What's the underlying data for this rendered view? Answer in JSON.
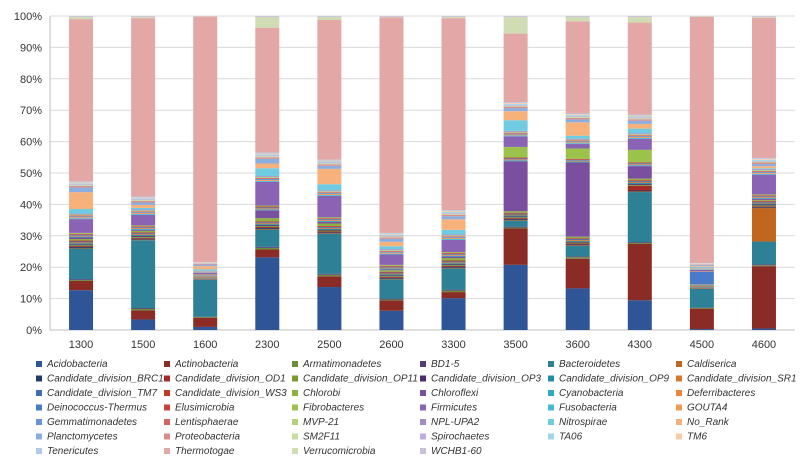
{
  "chart_data": {
    "type": "bar",
    "stacked": true,
    "normalized": true,
    "categories": [
      "1300",
      "1500",
      "1600",
      "2300",
      "2500",
      "2600",
      "3300",
      "3500",
      "3600",
      "4300",
      "4500",
      "4600"
    ],
    "y_ticks": [
      "0%",
      "10%",
      "20%",
      "30%",
      "40%",
      "50%",
      "60%",
      "70%",
      "80%",
      "90%",
      "100%"
    ],
    "ylim": [
      0,
      100
    ],
    "grid": true,
    "legend_position": "bottom",
    "series": [
      {
        "name": "Acidobacteria",
        "color": "#2f5597",
        "values": [
          13,
          3.5,
          1,
          23,
          14,
          6.5,
          10.5,
          21.5,
          14,
          9.5,
          0.3,
          0.5
        ]
      },
      {
        "name": "Actinobacteria",
        "color": "#8b2b25",
        "values": [
          3,
          3,
          3,
          2.5,
          3.5,
          3.5,
          2,
          12,
          10,
          18,
          6.5,
          20.5
        ]
      },
      {
        "name": "Armatimonadetes",
        "color": "#6b8e3a",
        "values": [
          0.3,
          0.5,
          0.2,
          0.5,
          0.5,
          0.3,
          0.5,
          0.3,
          0.5,
          0.3,
          0.2,
          0.3
        ]
      },
      {
        "name": "BD1-5",
        "color": "#553c7b",
        "values": [
          0.3,
          0.3,
          0.1,
          0.3,
          0.3,
          0.3,
          0.3,
          0.3,
          0.3,
          0.3,
          0.1,
          0.3
        ]
      },
      {
        "name": "Bacteroidetes",
        "color": "#2d8096",
        "values": [
          10,
          22.5,
          12,
          5.5,
          13,
          6.5,
          7,
          2,
          3.5,
          16,
          6,
          7.5
        ]
      },
      {
        "name": "Caldiserica",
        "color": "#c0661e",
        "values": [
          0.2,
          0.2,
          0.1,
          0.2,
          0.2,
          0.2,
          0.2,
          0.2,
          0.2,
          0.2,
          0.1,
          11
        ]
      },
      {
        "name": "Candidate_division_BRC1",
        "color": "#1f3a6b",
        "values": [
          0.3,
          0.3,
          0.1,
          0.3,
          0.3,
          0.3,
          0.3,
          0.3,
          0.3,
          0.3,
          0.1,
          0.3
        ]
      },
      {
        "name": "Candidate_division_OD1",
        "color": "#a52a2a",
        "values": [
          0.3,
          0.3,
          0.1,
          0.3,
          0.3,
          0.3,
          0.3,
          0.3,
          0.3,
          1.5,
          0.1,
          0.3
        ]
      },
      {
        "name": "Candidate_division_OP11",
        "color": "#7a9a2e",
        "values": [
          0.3,
          0.3,
          0.1,
          0.3,
          0.3,
          0.3,
          0.3,
          0.3,
          0.3,
          0.3,
          0.1,
          0.3
        ]
      },
      {
        "name": "Candidate_division_OP3",
        "color": "#4b2c70",
        "values": [
          0.3,
          0.3,
          0.1,
          0.3,
          0.3,
          0.3,
          0.3,
          0.3,
          0.3,
          0.3,
          0.1,
          0.3
        ]
      },
      {
        "name": "Candidate_division_OP9",
        "color": "#1f8fa8",
        "values": [
          0.3,
          0.3,
          0.1,
          0.3,
          0.3,
          0.3,
          0.3,
          0.3,
          0.3,
          0.3,
          0.1,
          0.3
        ]
      },
      {
        "name": "Candidate_division_SR1",
        "color": "#d9772b",
        "values": [
          0.3,
          0.3,
          0.1,
          0.3,
          0.3,
          0.3,
          0.3,
          0.3,
          0.3,
          0.3,
          0.1,
          0.3
        ]
      },
      {
        "name": "Candidate_division_TM7",
        "color": "#3f6cb3",
        "values": [
          0.3,
          0.3,
          0.1,
          0.3,
          0.3,
          0.3,
          0.3,
          0.3,
          0.3,
          0.3,
          0.1,
          0.3
        ]
      },
      {
        "name": "Candidate_division_WS3",
        "color": "#c0392b",
        "values": [
          0.3,
          0.3,
          0.1,
          0.3,
          0.3,
          0.3,
          0.3,
          0.3,
          0.3,
          0.3,
          0.1,
          0.3
        ]
      },
      {
        "name": "Chlorobi",
        "color": "#8db141",
        "values": [
          0.5,
          0.5,
          0.2,
          1,
          0.8,
          0.5,
          0.8,
          0.5,
          0.5,
          0.5,
          0.2,
          0.3
        ]
      },
      {
        "name": "Chloroflexi",
        "color": "#7b4fa0",
        "values": [
          0.5,
          0.3,
          0.2,
          2.5,
          0.5,
          0.3,
          0.5,
          16.5,
          25,
          4,
          0.1,
          0.3
        ]
      },
      {
        "name": "Cyanobacteria",
        "color": "#2eaac8",
        "values": [
          0.3,
          0.3,
          0.1,
          0.3,
          0.3,
          0.3,
          0.3,
          0.3,
          0.3,
          0.3,
          0.1,
          0.3
        ]
      },
      {
        "name": "Deferribacteres",
        "color": "#f0843a",
        "values": [
          0.3,
          0.3,
          0.1,
          0.3,
          0.3,
          0.3,
          0.3,
          0.3,
          0.3,
          0.3,
          0.1,
          0.3
        ]
      },
      {
        "name": "Deinococcus-Thermus",
        "color": "#4a7bc8",
        "values": [
          0.3,
          0.3,
          0.1,
          0.3,
          0.3,
          0.3,
          0.3,
          0.3,
          0.3,
          0.3,
          4,
          0.3
        ]
      },
      {
        "name": "Elusimicrobia",
        "color": "#c9413c",
        "values": [
          0.3,
          0.3,
          0.1,
          0.3,
          0.3,
          0.3,
          0.3,
          0.3,
          0.3,
          0.3,
          0.1,
          0.3
        ]
      },
      {
        "name": "Fibrobacteres",
        "color": "#9bc24a",
        "values": [
          0.3,
          0.3,
          0.1,
          0.3,
          0.3,
          0.3,
          0.3,
          3.5,
          3.5,
          4,
          0.1,
          0.3
        ]
      },
      {
        "name": "Firmicutes",
        "color": "#8a63b5",
        "values": [
          4.5,
          3.5,
          0.5,
          7.5,
          7,
          3.5,
          4,
          3.5,
          1.5,
          3.5,
          0.4,
          6.5
        ]
      },
      {
        "name": "Fusobacteria",
        "color": "#43bcd8",
        "values": [
          0.3,
          0.3,
          0.1,
          0.3,
          0.3,
          0.3,
          0.3,
          0.3,
          0.3,
          0.3,
          0.1,
          0.3
        ]
      },
      {
        "name": "GOUTA4",
        "color": "#f39a4f",
        "values": [
          0.3,
          0.3,
          0.1,
          0.3,
          0.3,
          0.3,
          0.3,
          0.3,
          0.3,
          0.3,
          0.1,
          0.3
        ]
      },
      {
        "name": "Gemmatimonadetes",
        "color": "#6a93d6",
        "values": [
          0.3,
          0.3,
          0.1,
          0.3,
          0.3,
          0.3,
          0.3,
          0.3,
          0.3,
          0.3,
          0.1,
          0.3
        ]
      },
      {
        "name": "Lentisphaerae",
        "color": "#d66561",
        "values": [
          0.3,
          0.3,
          0.1,
          0.3,
          0.3,
          0.3,
          0.3,
          0.3,
          0.3,
          0.3,
          0.1,
          0.3
        ]
      },
      {
        "name": "MVP-21",
        "color": "#b2d37a",
        "values": [
          0.3,
          0.3,
          0.1,
          0.3,
          0.3,
          0.3,
          0.3,
          0.3,
          0.3,
          0.3,
          0.1,
          0.3
        ]
      },
      {
        "name": "NPL-UPA2",
        "color": "#a48bc8",
        "values": [
          0.3,
          0.3,
          0.1,
          0.3,
          0.3,
          0.3,
          0.3,
          0.3,
          0.3,
          0.3,
          0.1,
          0.3
        ]
      },
      {
        "name": "Nitrospirae",
        "color": "#6fcbe2",
        "values": [
          1.5,
          0.5,
          0.5,
          2.5,
          2,
          1,
          1.5,
          3.5,
          1,
          1.5,
          0.3,
          0.3
        ]
      },
      {
        "name": "No_Rank",
        "color": "#f7b27c",
        "values": [
          5.5,
          1,
          1,
          1.5,
          5,
          1.5,
          3.5,
          3,
          4.5,
          1.5,
          0.3,
          0.7
        ]
      },
      {
        "name": "Planctomycetes",
        "color": "#8aaee0",
        "values": [
          1.5,
          0.8,
          0.5,
          1.5,
          1,
          1,
          1,
          1,
          1,
          1,
          0.3,
          0.7
        ]
      },
      {
        "name": "Proteobacteria",
        "color": "#d98c8a",
        "values": [
          0.5,
          0.5,
          0.3,
          0.5,
          0.5,
          0.5,
          0.5,
          0.5,
          0.5,
          0.5,
          0.2,
          0.5
        ]
      },
      {
        "name": "SM2F11",
        "color": "#c6dfa0",
        "values": [
          0.3,
          0.3,
          0.1,
          0.3,
          0.3,
          0.3,
          0.3,
          0.3,
          0.3,
          0.3,
          0.1,
          0.3
        ]
      },
      {
        "name": "Spirochaetes",
        "color": "#bcaee0",
        "values": [
          0.3,
          0.3,
          0.1,
          0.3,
          0.3,
          0.3,
          0.3,
          0.3,
          0.3,
          0.3,
          0.1,
          0.3
        ]
      },
      {
        "name": "TA06",
        "color": "#9cd8ea",
        "values": [
          0.3,
          0.3,
          0.1,
          0.3,
          0.3,
          0.3,
          0.3,
          0.3,
          0.3,
          0.3,
          0.1,
          0.3
        ]
      },
      {
        "name": "TM6",
        "color": "#f9c9a3",
        "values": [
          0.3,
          0.3,
          0.1,
          0.3,
          0.3,
          0.3,
          0.3,
          0.3,
          0.3,
          0.3,
          0.1,
          0.3
        ]
      },
      {
        "name": "Tenericutes",
        "color": "#b4c8ea",
        "values": [
          0.3,
          0.3,
          0.1,
          0.3,
          0.3,
          0.3,
          0.3,
          0.3,
          0.3,
          0.3,
          0.1,
          0.3
        ]
      },
      {
        "name": "Thermotogae",
        "color": "#e3a8a6",
        "values": [
          53,
          59.2,
          79.6,
          39.5,
          45.5,
          72.8,
          63.3,
          22.6,
          31,
          29.4,
          78.3,
          46.1
        ]
      },
      {
        "name": "Verrucomicrobia",
        "color": "#cfdcb4",
        "values": [
          0.7,
          0.4,
          0.1,
          3.4,
          1,
          0.2,
          0.4,
          5.5,
          1.5,
          1.8,
          0.2,
          0.3
        ]
      },
      {
        "name": "WCHB1-60",
        "color": "#c9c1dc",
        "values": [
          0.3,
          0.3,
          0.1,
          0.3,
          0.3,
          0.3,
          0.3,
          0.3,
          0.3,
          0.3,
          0.1,
          0.3
        ]
      }
    ]
  }
}
